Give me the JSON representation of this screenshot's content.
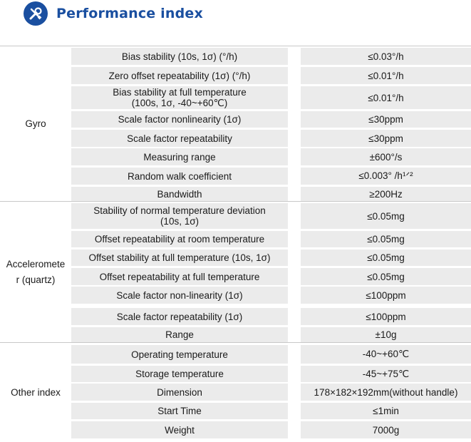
{
  "header": {
    "title": "Performance index",
    "icon": "tools-icon",
    "brand_color": "#1a4fa0"
  },
  "groups": [
    {
      "label": "Gyro",
      "rows": [
        {
          "param": "Bias stability (10s, 1σ) (°/h)",
          "value": "≤0.03°/h"
        },
        {
          "param": "Zero offset repeatability (1σ) (°/h)",
          "value": "≤0.01°/h"
        },
        {
          "param": "Bias stability at full temperature\n(100s, 1σ, -40~+60℃)",
          "value": "≤0.01°/h"
        },
        {
          "param": "Scale factor nonlinearity (1σ)",
          "value": "≤30ppm"
        },
        {
          "param": "Scale factor repeatability",
          "value": "≤30ppm"
        },
        {
          "param": "Measuring range",
          "value": "±600°/s"
        },
        {
          "param": "Random walk coefficient",
          "value": "≤0.003° /h¹ᐟ²"
        },
        {
          "param": "Bandwidth",
          "value": "≥200Hz"
        }
      ]
    },
    {
      "label": "Acceleromete\nr (quartz)",
      "rows": [
        {
          "param": "Stability of normal temperature deviation\n(10s, 1σ)",
          "value": "≤0.05mg"
        },
        {
          "param": "Offset repeatability at room temperature",
          "value": "≤0.05mg"
        },
        {
          "param": "Offset stability at full temperature (10s, 1σ)",
          "value": "≤0.05mg"
        },
        {
          "param": "Offset repeatability at full temperature",
          "value": "≤0.05mg"
        },
        {
          "param": "Scale factor non-linearity (1σ)",
          "value": "≤100ppm"
        },
        {
          "param": "Scale factor repeatability (1σ)",
          "value": "≤100ppm"
        },
        {
          "param": "Range",
          "value": "±10g"
        }
      ]
    },
    {
      "label": "Other index",
      "rows": [
        {
          "param": "Operating temperature",
          "value": "-40~+60℃"
        },
        {
          "param": "Storage temperature",
          "value": "-45~+75℃"
        },
        {
          "param": "Dimension",
          "value": "178×182×192mm(without handle)"
        },
        {
          "param": "Start Time",
          "value": "≤1min"
        },
        {
          "param": "Weight",
          "value": "7000g"
        }
      ]
    }
  ]
}
